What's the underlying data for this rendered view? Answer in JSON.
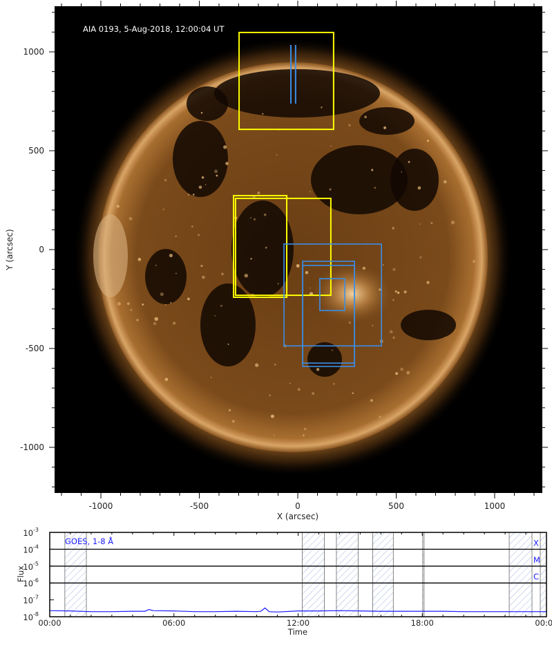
{
  "colors": {
    "yellow_box": "#ffff00",
    "blue_box": "#3a8ee8",
    "goes_line": "#1a1aff",
    "band_label": "#1a1aff"
  },
  "chart_data": [
    {
      "type": "image-map",
      "title": "AIA 0193, 5-Aug-2018, 12:00:04 UT",
      "xlabel": "X (arcsec)",
      "ylabel": "Y (arcsec)",
      "xlim": [
        -1235,
        1242
      ],
      "ylim": [
        -1234,
        1231
      ],
      "x_ticks": [
        -1000,
        -500,
        0,
        500,
        1000
      ],
      "y_ticks": [
        1000,
        500,
        0,
        -500,
        -1000
      ],
      "boxes": [
        {
          "color": "yellow",
          "x": [
            -298,
            182
          ],
          "y": [
            608,
            1098
          ]
        },
        {
          "color": "yellow",
          "x": [
            -326,
            -56
          ],
          "y": [
            -241,
            273
          ]
        },
        {
          "color": "yellow",
          "x": [
            -316,
            168
          ],
          "y": [
            -231,
            259
          ]
        },
        {
          "color": "blue",
          "x": [
            -70,
            425
          ],
          "y": [
            -487,
            28
          ]
        },
        {
          "color": "blue",
          "x": [
            25,
            288
          ],
          "y": [
            -591,
            -59
          ]
        },
        {
          "color": "blue",
          "x": [
            25,
            288
          ],
          "y": [
            -574,
            -80
          ]
        },
        {
          "color": "blue",
          "x": [
            112,
            239
          ],
          "y": [
            -308,
            -147
          ]
        }
      ],
      "slits": [
        {
          "color": "blue",
          "x": -35,
          "y": [
            738,
            1035
          ]
        },
        {
          "color": "blue",
          "x": -11,
          "y": [
            738,
            1035
          ]
        }
      ]
    },
    {
      "type": "line",
      "legend": "GOES, 1-8 Å",
      "xlabel": "Time",
      "ylabel": "Flux",
      "yscale": "log",
      "ylim": [
        1e-08,
        0.001
      ],
      "xlim_hours": [
        0,
        24
      ],
      "x_tick_labels": [
        "00:00",
        "06:00",
        "12:00",
        "18:00",
        "00:00"
      ],
      "y_tick_labels": [
        {
          "base": "10",
          "exp": "-3"
        },
        {
          "base": "10",
          "exp": "-4"
        },
        {
          "base": "10",
          "exp": "-5"
        },
        {
          "base": "10",
          "exp": "-6"
        },
        {
          "base": "10",
          "exp": "-7"
        },
        {
          "base": "10",
          "exp": "-8"
        }
      ],
      "class_lines": [
        {
          "label": "X",
          "flux": 0.0001
        },
        {
          "label": "M",
          "flux": 1e-05
        },
        {
          "label": "C",
          "flux": 1e-06
        }
      ],
      "shaded_intervals_hours": [
        [
          0.73,
          1.77
        ],
        [
          12.2,
          13.27
        ],
        [
          13.85,
          14.9
        ],
        [
          15.6,
          16.6
        ],
        [
          18.02,
          18.08
        ],
        [
          22.2,
          23.3
        ],
        [
          23.7,
          24.0
        ]
      ],
      "series": {
        "x_hours": [
          0,
          1,
          2,
          3,
          4,
          4.6,
          4.8,
          5.0,
          6,
          7,
          8,
          9,
          10,
          10.2,
          10.4,
          10.6,
          11,
          12,
          13,
          14,
          15,
          16,
          17,
          18,
          19,
          20,
          21,
          22,
          23,
          24
        ],
        "flux": [
          2.3e-08,
          2.2e-08,
          2e-08,
          2e-08,
          2.1e-08,
          2.1e-08,
          2.7e-08,
          2.3e-08,
          2.2e-08,
          2e-08,
          2e-08,
          2.1e-08,
          2e-08,
          2.1e-08,
          3.3e-08,
          2e-08,
          1.9e-08,
          2.2e-08,
          2.2e-08,
          2.3e-08,
          2.2e-08,
          2.1e-08,
          2.1e-08,
          2.1e-08,
          2.1e-08,
          2e-08,
          2e-08,
          2e-08,
          2e-08,
          2e-08
        ]
      }
    }
  ]
}
